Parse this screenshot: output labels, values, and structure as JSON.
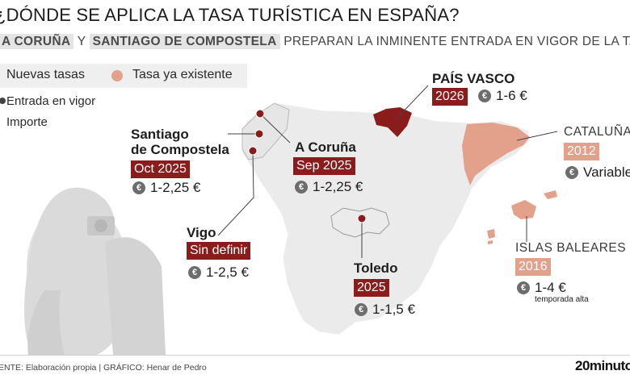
{
  "header": {
    "title": "¿DÓNDE SE APLICA LA TASA TURÍSTICA EN ESPAÑA?",
    "subtitle_city1": "A CORUÑA",
    "subtitle_y": "Y",
    "subtitle_city2": "SANTIAGO DE COMPOSTELA",
    "subtitle_rest": "PREPARAN LA INMINENTE ENTRADA EN VIGOR DE LA TASA"
  },
  "legend": {
    "new_label": "Nuevas tasas",
    "existing_label": "Tasa ya existente",
    "date_label": "Entrada en vigor",
    "price_label": "Importe",
    "existing_color": "#e3a18c",
    "new_color": "#8b1c1c"
  },
  "places": [
    {
      "name_line1": "Santiago",
      "name_line2": "de Compostela",
      "date": "Oct 2025",
      "price": "1-2,25 €"
    },
    {
      "name": "A Coruña",
      "date": "Sep 2025",
      "price": "1-2,25 €"
    },
    {
      "name": "Vigo",
      "date": "Sin definir",
      "price": "1-2,5 €"
    },
    {
      "name": "PAÍS VASCO",
      "date": "2026",
      "price": "1-6 €"
    },
    {
      "name": "CATALUÑA",
      "date": "2012",
      "price": "Variable"
    },
    {
      "name": "ISLAS BALEARES",
      "date": "2016",
      "price": "1-4 €",
      "note": "temporada alta"
    },
    {
      "name": "Toledo",
      "date": "2025",
      "price": "1-1,5 €"
    }
  ],
  "euro_symbol": "€",
  "footer": {
    "source": "ENTE: Elaboración propia  |  GRÁFICO: Henar de Pedro",
    "brand": "20minutos"
  }
}
